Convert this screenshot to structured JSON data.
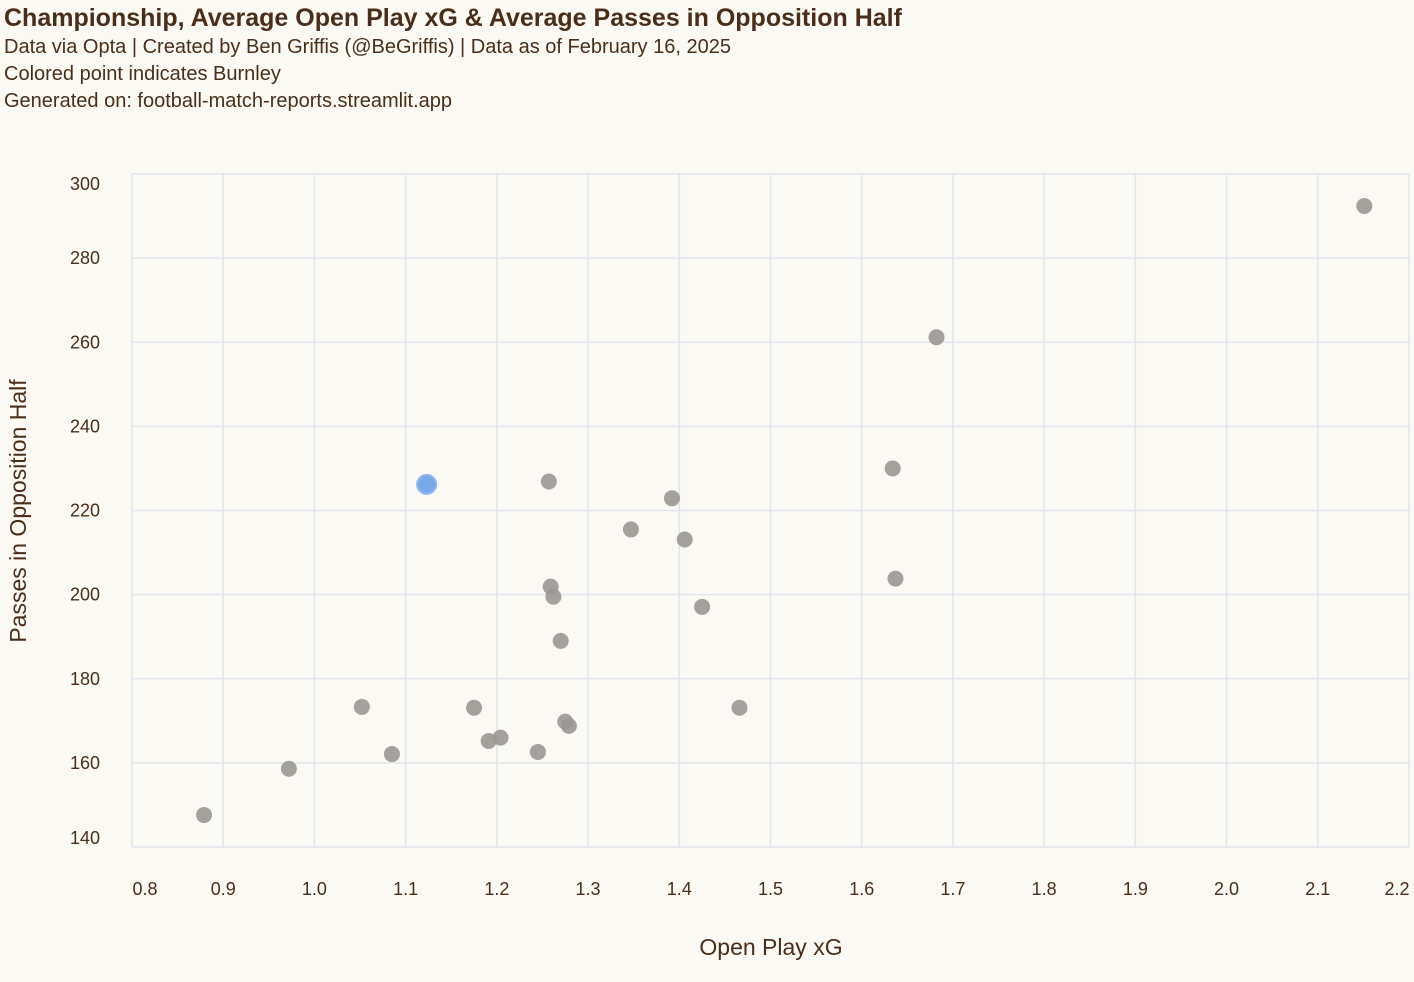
{
  "title": "Championship, Average Open Play xG & Average Passes in Opposition Half",
  "subtitles": [
    "Data via Opta | Created by Ben Griffis (@BeGriffis) | Data as of February 16, 2025",
    "Colored point indicates Burnley",
    "Generated on: football-match-reports.streamlit.app"
  ],
  "colors": {
    "highlight": "#6a9fe6",
    "point": "#9a9794",
    "grid": "#e1e6ee",
    "text": "#4a2e19"
  },
  "chart_data": {
    "type": "scatter",
    "title": "Championship, Average Open Play xG & Average Passes in Opposition Half",
    "xlabel": "Open Play xG",
    "ylabel": "Passes in Opposition Half",
    "xlim": [
      0.8,
      2.2
    ],
    "ylim": [
      140,
      300
    ],
    "xticks": [
      "0.8",
      "0.9",
      "1.0",
      "1.1",
      "1.2",
      "1.3",
      "1.4",
      "1.5",
      "1.6",
      "1.7",
      "1.8",
      "1.9",
      "2.0",
      "2.1",
      "2.2"
    ],
    "yticks": [
      "140",
      "160",
      "180",
      "200",
      "220",
      "240",
      "260",
      "280",
      "300"
    ],
    "grid": true,
    "highlight_label": "Burnley",
    "points": [
      {
        "x": 2.151,
        "y": 292.4,
        "highlight": false
      },
      {
        "x": 1.682,
        "y": 261.2,
        "highlight": false
      },
      {
        "x": 1.634,
        "y": 230.0,
        "highlight": false
      },
      {
        "x": 1.637,
        "y": 203.8,
        "highlight": false
      },
      {
        "x": 1.392,
        "y": 222.9,
        "highlight": false
      },
      {
        "x": 1.406,
        "y": 213.1,
        "highlight": false
      },
      {
        "x": 1.347,
        "y": 215.5,
        "highlight": false
      },
      {
        "x": 1.425,
        "y": 197.1,
        "highlight": false
      },
      {
        "x": 1.466,
        "y": 173.1,
        "highlight": false
      },
      {
        "x": 1.257,
        "y": 226.9,
        "highlight": false
      },
      {
        "x": 1.259,
        "y": 201.9,
        "highlight": false
      },
      {
        "x": 1.262,
        "y": 199.5,
        "highlight": false
      },
      {
        "x": 1.27,
        "y": 189.0,
        "highlight": false
      },
      {
        "x": 1.275,
        "y": 169.8,
        "highlight": false
      },
      {
        "x": 1.279,
        "y": 168.8,
        "highlight": false
      },
      {
        "x": 1.245,
        "y": 162.6,
        "highlight": false
      },
      {
        "x": 1.204,
        "y": 166.0,
        "highlight": false
      },
      {
        "x": 1.191,
        "y": 165.2,
        "highlight": false
      },
      {
        "x": 1.175,
        "y": 173.1,
        "highlight": false
      },
      {
        "x": 1.123,
        "y": 226.2,
        "highlight": true
      },
      {
        "x": 1.085,
        "y": 162.1,
        "highlight": false
      },
      {
        "x": 1.052,
        "y": 173.3,
        "highlight": false
      },
      {
        "x": 0.972,
        "y": 158.6,
        "highlight": false
      },
      {
        "x": 0.879,
        "y": 147.6,
        "highlight": false
      }
    ]
  }
}
